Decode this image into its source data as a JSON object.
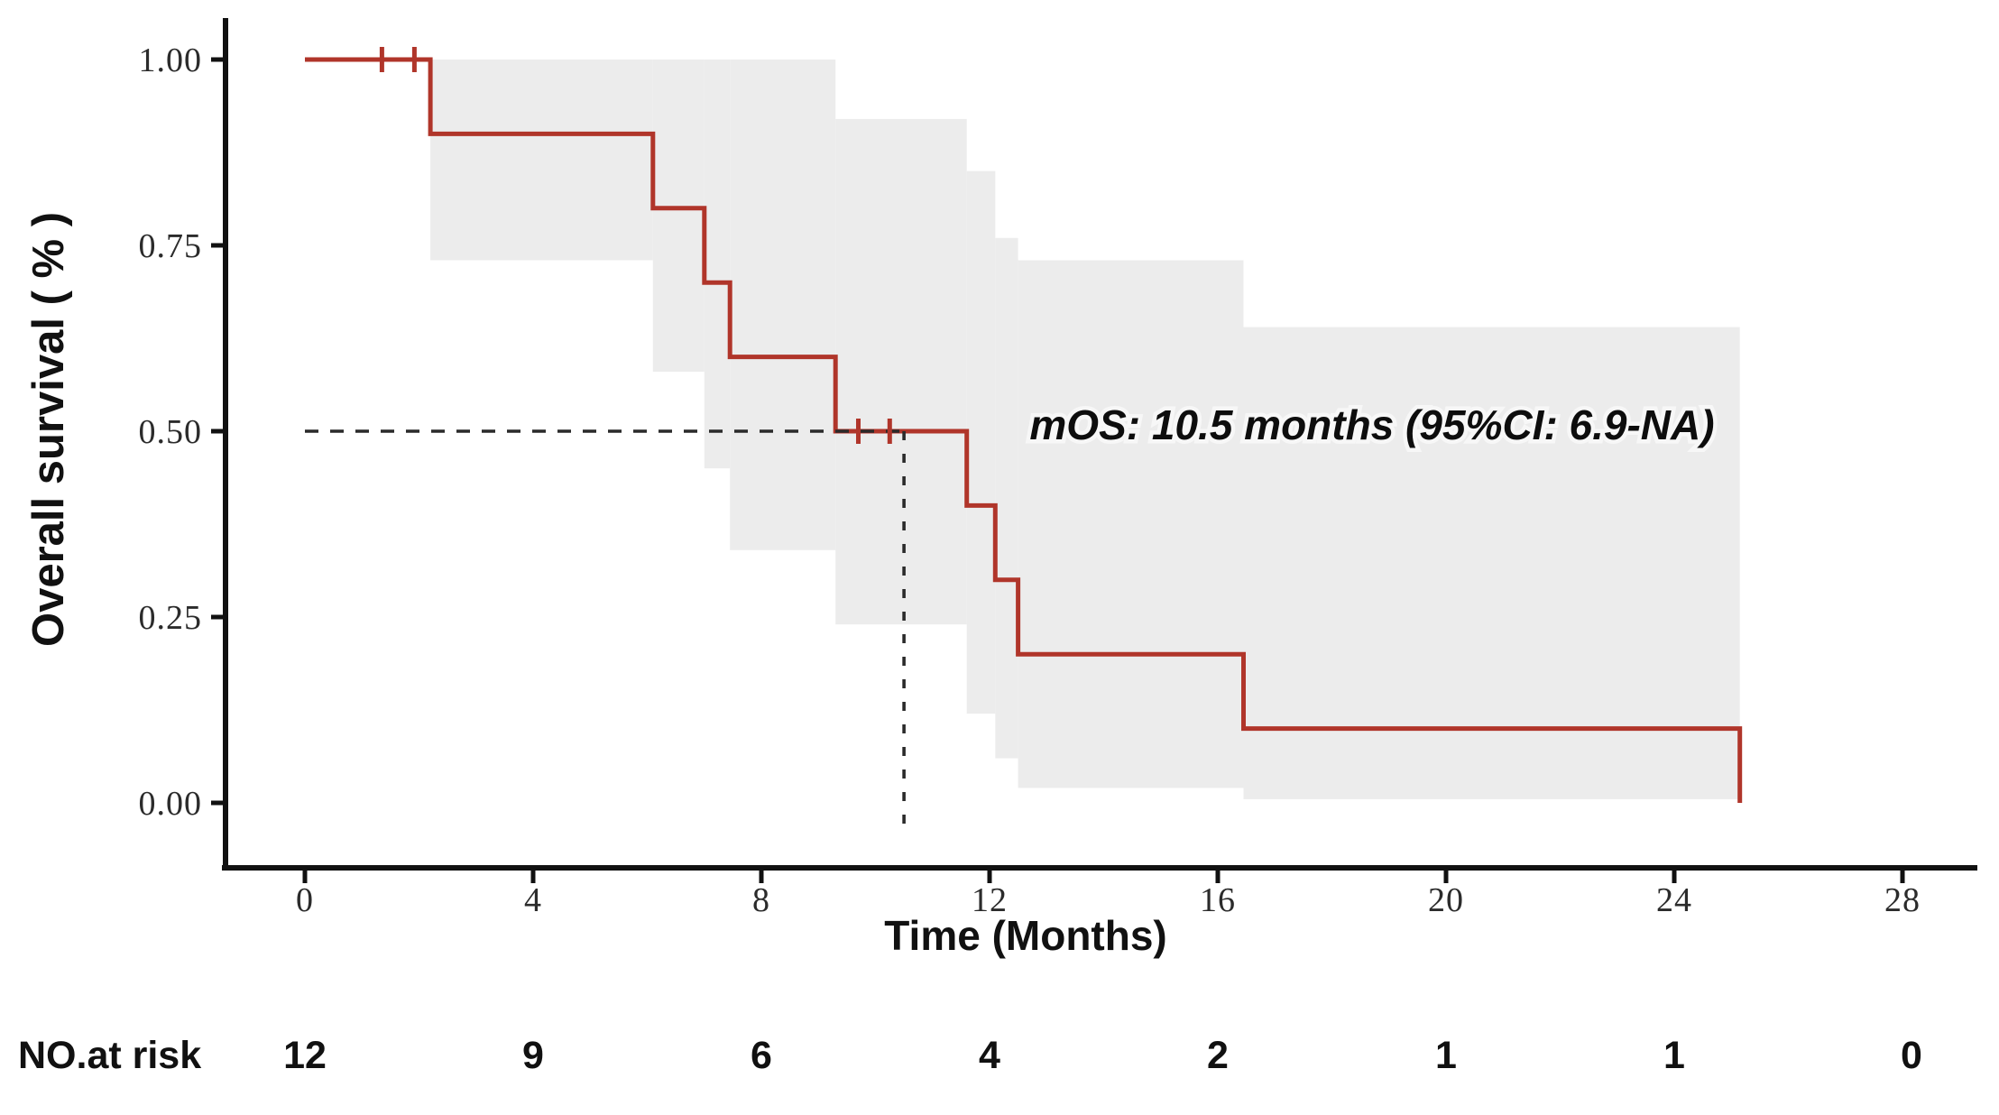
{
  "chart_data": {
    "type": "line",
    "subtype": "kaplan_meier_step",
    "title": "",
    "xlabel": "Time (Months)",
    "ylabel": "Overall survival ( % )",
    "xlim": [
      0,
      28
    ],
    "ylim": [
      0.0,
      1.0
    ],
    "x_ticks": [
      0,
      4,
      8,
      12,
      16,
      20,
      24,
      28
    ],
    "y_ticks": [
      1.0,
      0.75,
      0.5,
      0.25,
      0.0
    ],
    "y_tick_labels": [
      "1.00",
      "0.75",
      "0.50",
      "0.25",
      "0.00"
    ],
    "grid": false,
    "legend": "none",
    "annotation": "mOS: 10.5 months (95%CI: 6.9-NA)",
    "median_os_months": 10.5,
    "series": [
      {
        "name": "Overall survival",
        "levels": [
          {
            "t": 0,
            "s": 1.0
          },
          {
            "t": 2.2,
            "s": 0.9
          },
          {
            "t": 6.1,
            "s": 0.8
          },
          {
            "t": 7.0,
            "s": 0.7
          },
          {
            "t": 7.45,
            "s": 0.6
          },
          {
            "t": 9.3,
            "s": 0.5
          },
          {
            "t": 11.6,
            "s": 0.4
          },
          {
            "t": 12.1,
            "s": 0.3
          },
          {
            "t": 12.5,
            "s": 0.2
          },
          {
            "t": 16.45,
            "s": 0.1
          },
          {
            "t": 25.15,
            "s": 0.0
          }
        ]
      }
    ],
    "censor_marks": [
      {
        "t": 1.35,
        "s": 1.0
      },
      {
        "t": 1.92,
        "s": 1.0
      },
      {
        "t": 9.7,
        "s": 0.5
      },
      {
        "t": 10.25,
        "s": 0.5
      }
    ],
    "confidence_band": {
      "segments": [
        {
          "t0": 2.2,
          "t1": 6.1,
          "lower": 0.73,
          "upper": 1.0
        },
        {
          "t0": 6.1,
          "t1": 7.0,
          "lower": 0.58,
          "upper": 1.0
        },
        {
          "t0": 7.0,
          "t1": 7.45,
          "lower": 0.45,
          "upper": 1.0
        },
        {
          "t0": 7.45,
          "t1": 9.3,
          "lower": 0.34,
          "upper": 1.0
        },
        {
          "t0": 9.3,
          "t1": 11.6,
          "lower": 0.24,
          "upper": 0.92
        },
        {
          "t0": 11.6,
          "t1": 12.1,
          "lower": 0.12,
          "upper": 0.85
        },
        {
          "t0": 12.1,
          "t1": 12.5,
          "lower": 0.06,
          "upper": 0.76
        },
        {
          "t0": 12.5,
          "t1": 16.45,
          "lower": 0.02,
          "upper": 0.73
        },
        {
          "t0": 16.45,
          "t1": 25.15,
          "lower": 0.005,
          "upper": 0.64
        }
      ]
    },
    "median_line": {
      "t": 10.5,
      "s": 0.5
    },
    "risk_table": {
      "label": "NO.at risk",
      "times": [
        0,
        4,
        8,
        12,
        16,
        20,
        24,
        28
      ],
      "counts": [
        12,
        9,
        6,
        4,
        2,
        1,
        1,
        0
      ]
    },
    "colors": {
      "curve": "#b0352a",
      "ci_band": "#ececec",
      "axis": "#111111",
      "dashed": "#2a2a2a",
      "background": "#ffffff"
    }
  }
}
